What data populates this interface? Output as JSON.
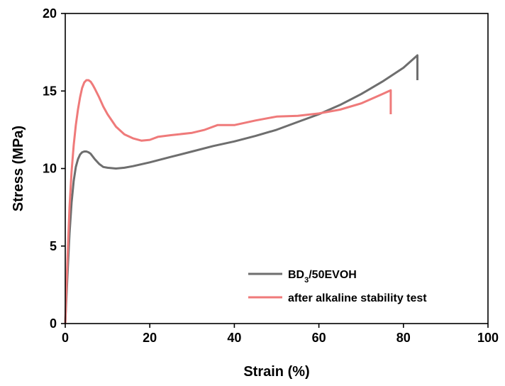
{
  "chart_data": {
    "type": "line",
    "xlabel": "Strain (%)",
    "ylabel": "Stress (MPa)",
    "xlim": [
      0,
      100
    ],
    "ylim": [
      0,
      20
    ],
    "xticks": [
      "0",
      "20",
      "40",
      "60",
      "80",
      "100"
    ],
    "yticks": [
      "0",
      "5",
      "10",
      "15",
      "20"
    ],
    "grid": false,
    "legend_position": "bottom-right",
    "series": [
      {
        "name": "BD₃/50EVOH",
        "legend_main": "BD",
        "legend_sub": "3",
        "legend_rest": "/50EVOH",
        "color": "#6e6e6e",
        "x": [
          0,
          0.5,
          1.0,
          1.5,
          2.0,
          2.5,
          3.0,
          3.5,
          4.0,
          4.5,
          5.0,
          5.5,
          6.0,
          7.0,
          8.0,
          9.0,
          10.0,
          12.0,
          14.0,
          16.0,
          20.0,
          25.0,
          30.0,
          35.0,
          40.0,
          45.0,
          50.0,
          55.0,
          60.0,
          65.0,
          70.0,
          75.0,
          80.0,
          83.3,
          83.3
        ],
        "y": [
          0,
          3.0,
          5.8,
          7.8,
          9.2,
          10.1,
          10.6,
          10.9,
          11.05,
          11.1,
          11.1,
          11.05,
          10.95,
          10.6,
          10.3,
          10.1,
          10.05,
          10.0,
          10.05,
          10.15,
          10.4,
          10.75,
          11.1,
          11.45,
          11.75,
          12.1,
          12.5,
          13.0,
          13.5,
          14.1,
          14.8,
          15.6,
          16.5,
          17.3,
          15.7
        ]
      },
      {
        "name": "after alkaline stability test",
        "color": "#ef7a7a",
        "x": [
          0,
          0.5,
          1.0,
          1.5,
          2.0,
          2.5,
          3.0,
          3.5,
          4.0,
          4.5,
          5.0,
          5.5,
          6.0,
          6.5,
          7.0,
          8.0,
          9.0,
          10.0,
          12.0,
          14.0,
          16.0,
          18.0,
          20.0,
          22.0,
          25.0,
          30.0,
          33.0,
          36.0,
          40.0,
          45.0,
          50.0,
          55.0,
          60.0,
          65.0,
          70.0,
          75.0,
          77.0,
          77.0
        ],
        "y": [
          0,
          4.0,
          7.5,
          9.8,
          11.5,
          12.8,
          13.8,
          14.6,
          15.2,
          15.55,
          15.7,
          15.7,
          15.6,
          15.4,
          15.15,
          14.6,
          14.0,
          13.5,
          12.7,
          12.2,
          11.95,
          11.8,
          11.85,
          12.05,
          12.15,
          12.3,
          12.5,
          12.8,
          12.8,
          13.1,
          13.35,
          13.4,
          13.55,
          13.8,
          14.2,
          14.8,
          15.05,
          13.5
        ]
      }
    ]
  }
}
